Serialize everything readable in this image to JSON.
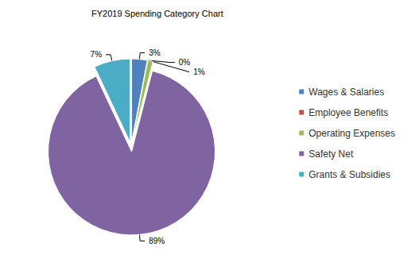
{
  "chart_data": {
    "type": "pie",
    "title": "FY2019 Spending Category Chart",
    "categories": [
      "Wages & Salaries",
      "Employee Benefits",
      "Operating Expenses",
      "Safety Net",
      "Grants & Subsidies"
    ],
    "values": [
      3,
      0,
      1,
      89,
      7
    ],
    "value_labels": [
      "3%",
      "0%",
      "1%",
      "89%",
      "7%"
    ],
    "colors": [
      "#4f81bd",
      "#c0504d",
      "#9bbb59",
      "#8064a2",
      "#4bacc6"
    ],
    "data_labels": true,
    "legend": "right"
  }
}
